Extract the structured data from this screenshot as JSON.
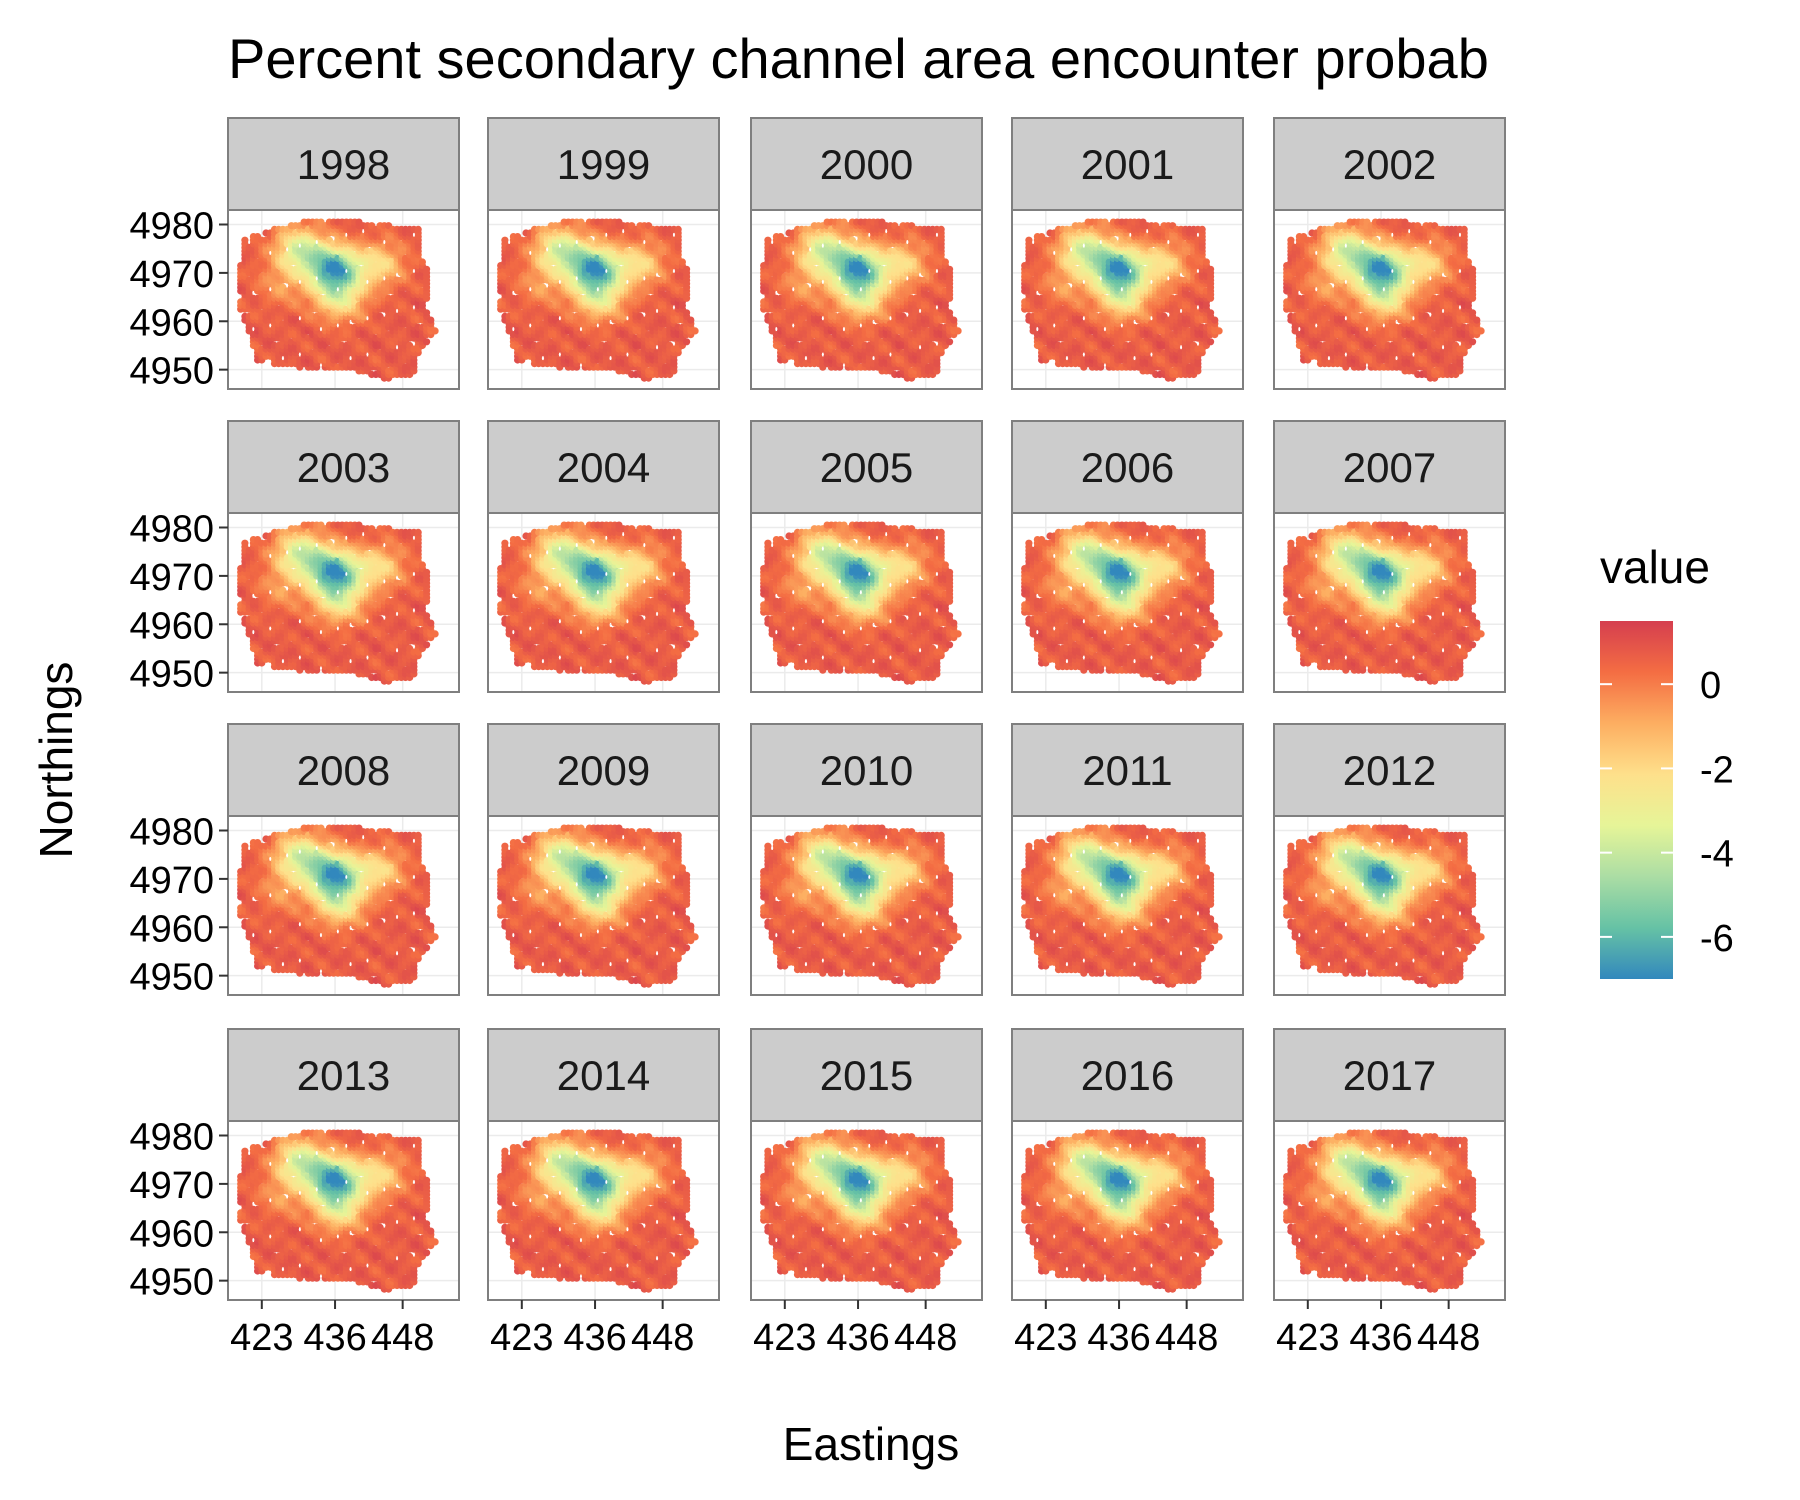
{
  "chart_data": {
    "type": "heatmap",
    "title": "Percent secondary channel area encounter probab",
    "xlabel": "Eastings",
    "ylabel": "Northings",
    "panels": [
      "1998",
      "1999",
      "2000",
      "2001",
      "2002",
      "2003",
      "2004",
      "2005",
      "2006",
      "2007",
      "2008",
      "2009",
      "2010",
      "2011",
      "2012",
      "2013",
      "2014",
      "2015",
      "2016",
      "2017"
    ],
    "ncol": 5,
    "nrow": 4,
    "x_ticks": [
      423,
      436,
      448
    ],
    "x_tick_labels": [
      "423",
      "436",
      "448"
    ],
    "y_ticks": [
      4950,
      4960,
      4970,
      4980
    ],
    "y_tick_labels": [
      "4950",
      "4960",
      "4970",
      "4980"
    ],
    "xlim": [
      417,
      458
    ],
    "ylim": [
      4946,
      4983
    ],
    "grid": true,
    "legend": {
      "title": "value",
      "placement": "right",
      "min": -7,
      "max": 1.5,
      "ticks": [
        0,
        -2,
        -4,
        -6
      ],
      "tick_labels": [
        "0",
        "-2",
        "-4",
        "-6"
      ],
      "colors": [
        "#3288bd",
        "#66c2a5",
        "#abdda4",
        "#e6f598",
        "#fee08b",
        "#fdae61",
        "#f46d43",
        "#d53e4f"
      ]
    },
    "surface": {
      "background_value": 0.7,
      "hotspots": [
        {
          "x": 436,
          "y": 4971,
          "value": -6.3
        },
        {
          "x": 430,
          "y": 4975,
          "value": -3.6
        },
        {
          "x": 437,
          "y": 4965,
          "value": -2.6
        },
        {
          "x": 444,
          "y": 4972,
          "value": -2.0
        },
        {
          "x": 427,
          "y": 4968,
          "value": -0.6
        }
      ]
    }
  }
}
